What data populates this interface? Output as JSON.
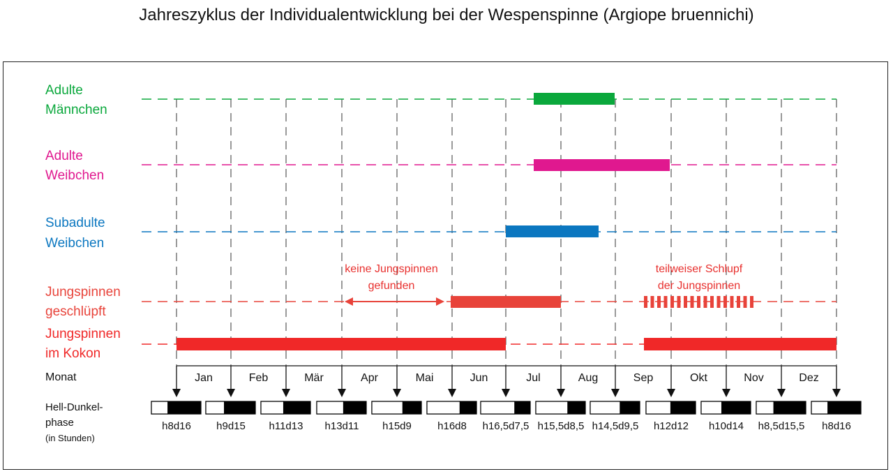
{
  "title": "Jahreszyklus der Individualentwicklung bei der Wespenspinne (Argiope bruennichi)",
  "colors": {
    "green": "#0aa83c",
    "magenta": "#e0188f",
    "blue": "#0b77c0",
    "red": "#f02828",
    "red_light": "#e8433a"
  },
  "rows": [
    {
      "id": "adult-male",
      "label_lines": [
        "Adulte",
        "Männchen"
      ],
      "color": "green"
    },
    {
      "id": "adult-female",
      "label_lines": [
        "Adulte",
        "Weibchen"
      ],
      "color": "magenta"
    },
    {
      "id": "subadult-female",
      "label_lines": [
        "Subadulte",
        "Weibchen"
      ],
      "color": "blue"
    },
    {
      "id": "hatched",
      "label_lines": [
        "Jungspinnen",
        "geschlüpft"
      ],
      "color": "red_light"
    },
    {
      "id": "cocoon",
      "label_lines": [
        "Jungspinnen",
        "im Kokon"
      ],
      "color": "red"
    }
  ],
  "annotations": {
    "no_young_lines": [
      "keine Jungspinnen",
      "gefunden"
    ],
    "partial_hatch_lines": [
      "teilweiser Schlupf",
      "der Jungspinnen"
    ]
  },
  "months_label": "Monat",
  "months": [
    "Jan",
    "Feb",
    "Mär",
    "Apr",
    "Mai",
    "Jun",
    "Jul",
    "Aug",
    "Sep",
    "Okt",
    "Nov",
    "Dez"
  ],
  "photoperiod_label_lines": [
    "Hell-Dunkel-",
    "phase"
  ],
  "photoperiod_unit": "(in Stunden)",
  "photoperiod": [
    {
      "label": "h8d16",
      "light": 8
    },
    {
      "label": "h9d15",
      "light": 9
    },
    {
      "label": "h11d13",
      "light": 11
    },
    {
      "label": "h13d11",
      "light": 13
    },
    {
      "label": "h15d9",
      "light": 15
    },
    {
      "label": "h16d8",
      "light": 16
    },
    {
      "label": "h16,5d7,5",
      "light": 16.5
    },
    {
      "label": "h15,5d8,5",
      "light": 15.5
    },
    {
      "label": "h14,5d9,5",
      "light": 14.5
    },
    {
      "label": "h12d12",
      "light": 12
    },
    {
      "label": "h10d14",
      "light": 10
    },
    {
      "label": "h8,5d15,5",
      "light": 8.5
    },
    {
      "label": "h8d16",
      "light": 8
    }
  ]
}
